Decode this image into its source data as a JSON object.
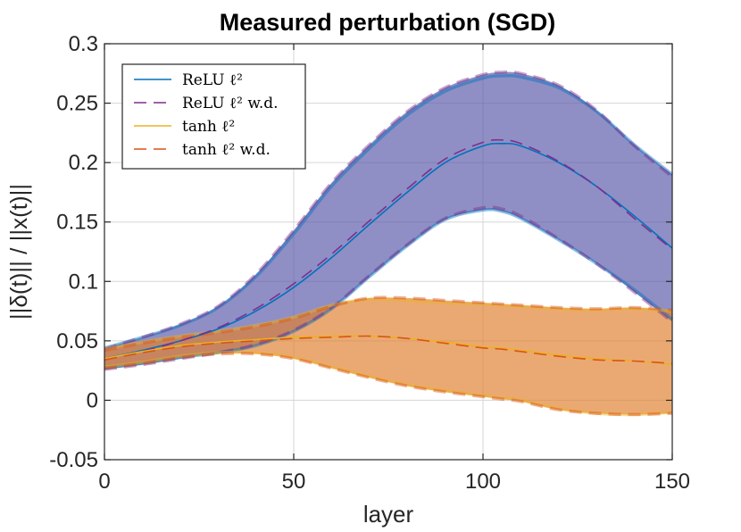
{
  "chart_data": {
    "type": "line",
    "title": "Measured perturbation (SGD)",
    "xlabel": "layer",
    "ylabel": "||δ(t)|| / ||x(t)||",
    "xlim": [
      0,
      150
    ],
    "ylim": [
      -0.05,
      0.3
    ],
    "xticks": [
      0,
      50,
      100,
      150
    ],
    "xtick_labels": [
      "0",
      "50",
      "100",
      "150"
    ],
    "yticks": [
      -0.05,
      0,
      0.05,
      0.1,
      0.15,
      0.2,
      0.25,
      0.3
    ],
    "ytick_labels": [
      "-0.05",
      "0",
      "0.05",
      "0.1",
      "0.15",
      "0.2",
      "0.25",
      "0.3"
    ],
    "grid": true,
    "legend_position": "top-left",
    "legend": [
      {
        "label": "ReLU ℓ² ",
        "style": "solid",
        "color": "#0072BD"
      },
      {
        "label": "ReLU ℓ² w.d.",
        "style": "dashed",
        "color": "#7E2F8E"
      },
      {
        "label": "tanh ℓ² ",
        "style": "solid",
        "color": "#EDB120"
      },
      {
        "label": "tanh ℓ² w.d.",
        "style": "dashed",
        "color": "#D95319"
      }
    ],
    "x": [
      0,
      10,
      20,
      30,
      40,
      50,
      60,
      70,
      80,
      90,
      100,
      105,
      110,
      120,
      130,
      140,
      150
    ],
    "series": [
      {
        "name": "ReLU ℓ²",
        "color": "#0072BD",
        "style": "solid",
        "mean": [
          0.035,
          0.042,
          0.05,
          0.06,
          0.075,
          0.095,
          0.12,
          0.148,
          0.175,
          0.2,
          0.214,
          0.216,
          0.214,
          0.2,
          0.18,
          0.155,
          0.128
        ],
        "upper": [
          0.044,
          0.053,
          0.063,
          0.078,
          0.104,
          0.14,
          0.18,
          0.212,
          0.24,
          0.26,
          0.271,
          0.273,
          0.272,
          0.263,
          0.243,
          0.215,
          0.19
        ],
        "lower": [
          0.027,
          0.031,
          0.036,
          0.04,
          0.046,
          0.058,
          0.077,
          0.104,
          0.13,
          0.152,
          0.16,
          0.159,
          0.153,
          0.135,
          0.115,
          0.093,
          0.068
        ]
      },
      {
        "name": "ReLU ℓ² w.d.",
        "color": "#7E2F8E",
        "style": "dashed",
        "mean": [
          0.034,
          0.041,
          0.05,
          0.061,
          0.077,
          0.098,
          0.123,
          0.151,
          0.178,
          0.203,
          0.217,
          0.219,
          0.216,
          0.201,
          0.18,
          0.153,
          0.127
        ],
        "upper": [
          0.043,
          0.053,
          0.064,
          0.079,
          0.106,
          0.143,
          0.183,
          0.215,
          0.243,
          0.263,
          0.274,
          0.276,
          0.275,
          0.265,
          0.244,
          0.214,
          0.188
        ],
        "lower": [
          0.026,
          0.03,
          0.035,
          0.04,
          0.047,
          0.059,
          0.078,
          0.105,
          0.131,
          0.153,
          0.162,
          0.161,
          0.155,
          0.136,
          0.115,
          0.091,
          0.066
        ]
      },
      {
        "name": "tanh ℓ²",
        "color": "#EDB120",
        "style": "solid",
        "mean": [
          0.035,
          0.041,
          0.046,
          0.049,
          0.051,
          0.053,
          0.054,
          0.054,
          0.052,
          0.049,
          0.045,
          0.044,
          0.042,
          0.038,
          0.035,
          0.033,
          0.03
        ],
        "upper": [
          0.043,
          0.049,
          0.054,
          0.058,
          0.063,
          0.07,
          0.08,
          0.085,
          0.084,
          0.082,
          0.081,
          0.08,
          0.079,
          0.077,
          0.076,
          0.077,
          0.075
        ],
        "lower": [
          0.028,
          0.032,
          0.037,
          0.04,
          0.04,
          0.036,
          0.028,
          0.02,
          0.013,
          0.008,
          0.004,
          0.002,
          0.0,
          -0.007,
          -0.011,
          -0.012,
          -0.01
        ]
      },
      {
        "name": "tanh ℓ² w.d.",
        "color": "#D95319",
        "style": "dashed",
        "mean": [
          0.034,
          0.04,
          0.045,
          0.048,
          0.05,
          0.052,
          0.053,
          0.054,
          0.052,
          0.048,
          0.044,
          0.043,
          0.041,
          0.037,
          0.034,
          0.033,
          0.031
        ],
        "upper": [
          0.042,
          0.048,
          0.053,
          0.057,
          0.062,
          0.069,
          0.079,
          0.086,
          0.086,
          0.084,
          0.082,
          0.081,
          0.08,
          0.078,
          0.077,
          0.078,
          0.076
        ],
        "lower": [
          0.027,
          0.031,
          0.036,
          0.039,
          0.039,
          0.035,
          0.027,
          0.019,
          0.012,
          0.007,
          0.003,
          0.001,
          -0.001,
          -0.008,
          -0.011,
          -0.012,
          -0.011
        ]
      }
    ],
    "bands": [
      {
        "name": "ReLU band",
        "fill": "#5A5AAA",
        "opacity": 0.68
      },
      {
        "name": "tanh band",
        "fill": "#E08030",
        "opacity": 0.68
      }
    ]
  }
}
